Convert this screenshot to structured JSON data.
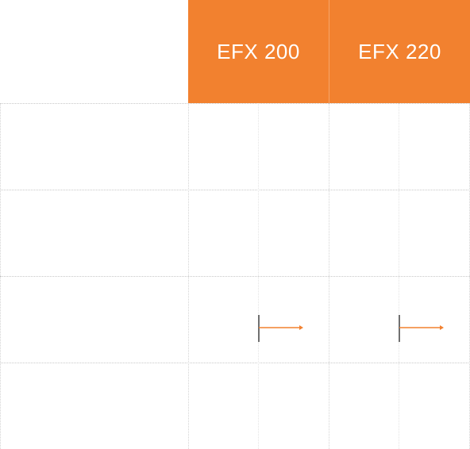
{
  "table": {
    "columns": [
      {
        "label": "EFX 200"
      },
      {
        "label": "EFX 220"
      }
    ],
    "rows": [
      {
        "label": "",
        "cells": [
          "",
          ""
        ]
      },
      {
        "label": "",
        "cells": [
          "",
          ""
        ]
      },
      {
        "label": "",
        "cells": [
          "indicator",
          "indicator"
        ]
      },
      {
        "label": "",
        "cells": [
          "",
          ""
        ]
      }
    ]
  },
  "colors": {
    "accent": "#f2812f",
    "header_text": "#ffffff",
    "grid": "#c8c8c8",
    "marker_bar": "#707070"
  }
}
